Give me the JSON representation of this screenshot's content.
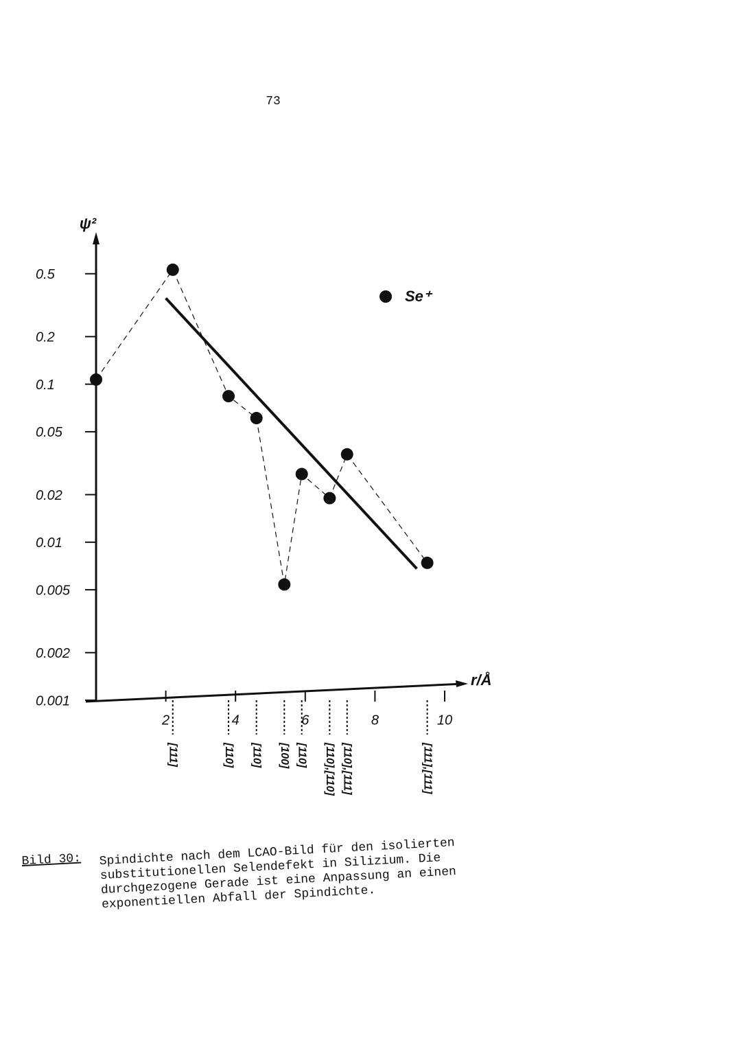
{
  "page_number": "73",
  "chart_data": {
    "type": "scatter",
    "ylabel": "ψ²",
    "xlabel": "r/Å",
    "log_y": true,
    "xlim": [
      0,
      10.6
    ],
    "ylim": [
      0.001,
      0.9
    ],
    "xticks": [
      2,
      4,
      6,
      8,
      10
    ],
    "yticks": [
      0.001,
      0.002,
      0.005,
      0.01,
      0.02,
      0.05,
      0.1,
      0.2,
      0.5
    ],
    "series": [
      {
        "name": "Se⁺",
        "color": "#111111",
        "x": [
          0,
          2.2,
          3.8,
          4.6,
          5.4,
          5.9,
          6.7,
          7.2,
          9.5
        ],
        "values": [
          0.107,
          0.53,
          0.084,
          0.061,
          0.0054,
          0.027,
          0.019,
          0.036,
          0.0074
        ]
      }
    ],
    "directions": [
      "[111]",
      "[110]",
      "[110]",
      "[100]",
      "[110]",
      "[110],[110]",
      "[110],[111]",
      "[111],[111]"
    ],
    "fit": {
      "x": [
        2.0,
        9.2
      ],
      "values": [
        0.35,
        0.0068
      ],
      "color": "#111111"
    }
  },
  "caption": {
    "label": "Bild 30:",
    "lines": [
      "Spindichte nach dem LCAO-Bild  für den isolierten",
      "substitutionellen  Selendefekt   in Silizium.  Die",
      "durchgezogene Gerade ist eine  Anpassung an einen",
      "exponentiellen Abfall der Spindichte."
    ]
  }
}
